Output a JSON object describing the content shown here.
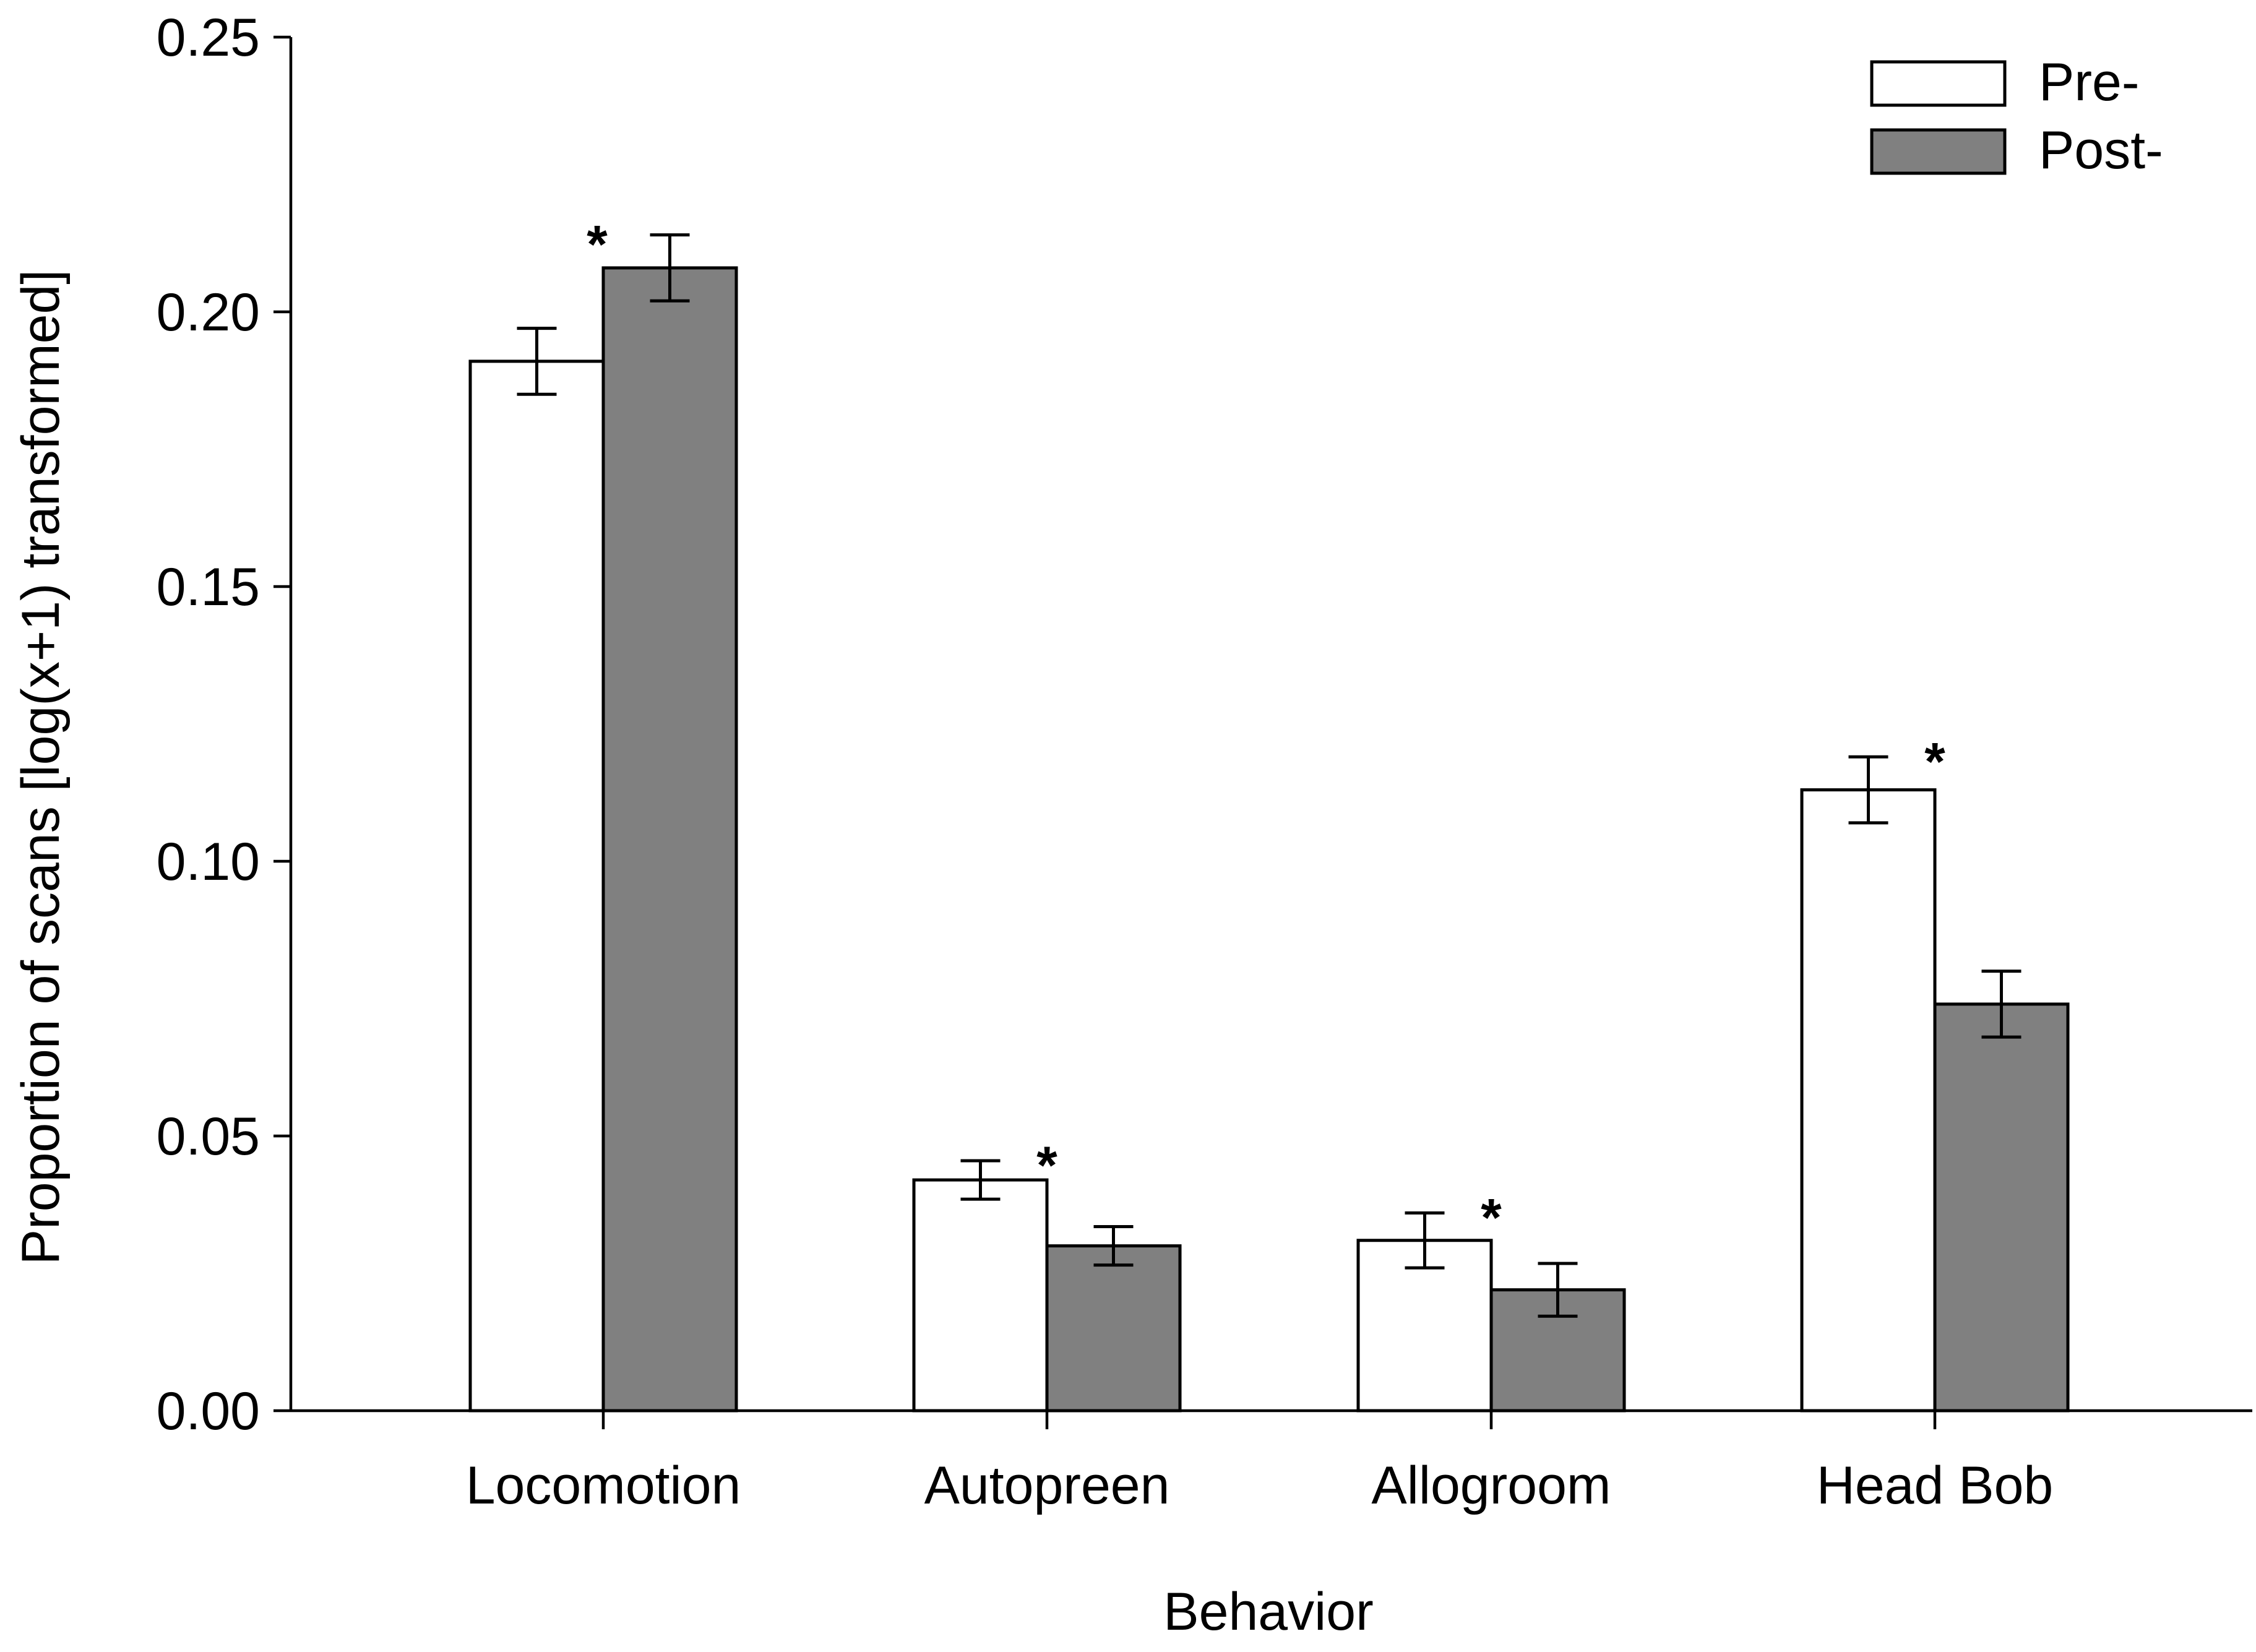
{
  "chart_data": {
    "type": "bar",
    "title": "",
    "xlabel": "Behavior",
    "ylabel": "Proportion of scans [log(x+1) transformed]",
    "ylim": [
      0,
      0.25
    ],
    "yticks": [
      "0.00",
      "0.05",
      "0.10",
      "0.15",
      "0.20",
      "0.25"
    ],
    "categories": [
      "Locomotion",
      "Autopreen",
      "Allogroom",
      "Head Bob"
    ],
    "series": [
      {
        "name": "Pre-",
        "color": "#ffffff",
        "values": [
          0.191,
          0.042,
          0.031,
          0.113
        ],
        "errors": [
          0.006,
          0.0035,
          0.005,
          0.006
        ]
      },
      {
        "name": "Post-",
        "color": "#808080",
        "values": [
          0.208,
          0.03,
          0.022,
          0.074
        ],
        "errors": [
          0.006,
          0.0035,
          0.0048,
          0.006
        ]
      }
    ],
    "significance": [
      {
        "category": "Locomotion",
        "label": "*"
      },
      {
        "category": "Autopreen",
        "label": "*"
      },
      {
        "category": "Allogroom",
        "label": "*"
      },
      {
        "category": "Head Bob",
        "label": "*"
      }
    ],
    "legend": {
      "position": "top-right"
    },
    "grid": false
  }
}
